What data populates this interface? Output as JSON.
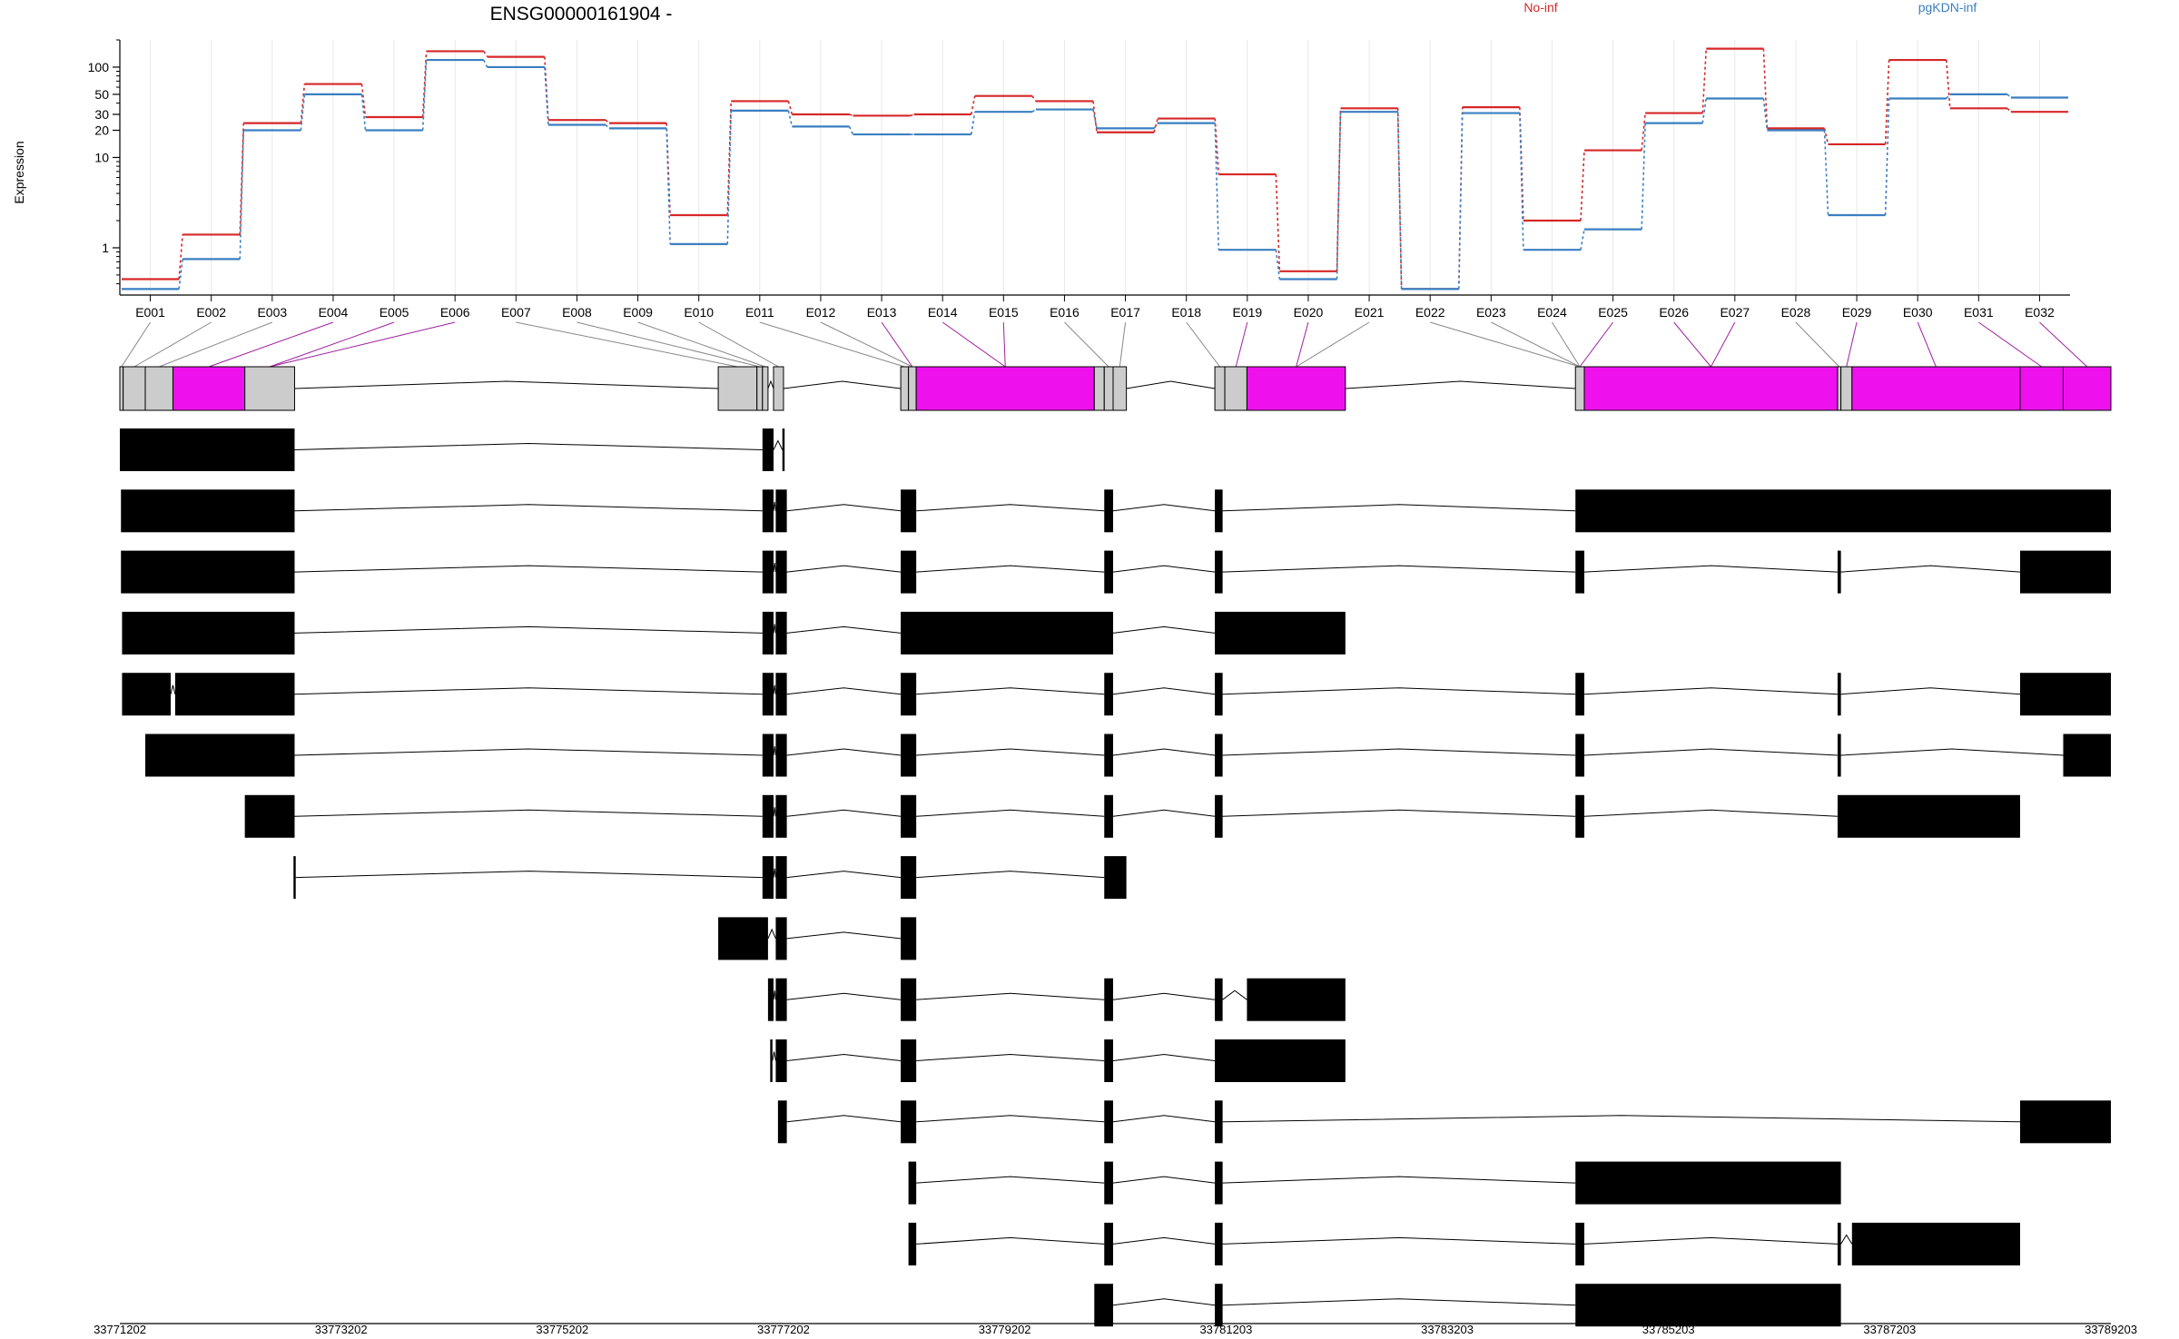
{
  "chart_data": {
    "type": "line",
    "title": "ENSG00000161904 -",
    "ylabel": "Expression",
    "yscale": "log",
    "ylim": [
      0.3,
      200
    ],
    "yticks": [
      1,
      10,
      20,
      30,
      50,
      100
    ],
    "colors": {
      "No-inf": "#d62728",
      "pgKDN-inf": "#3a7fc1",
      "exon_highlight": "#ee11ee",
      "exon_plain": "#cccccc",
      "transcript": "#000000"
    },
    "categories": [
      "E001",
      "E002",
      "E003",
      "E004",
      "E005",
      "E006",
      "E007",
      "E008",
      "E009",
      "E010",
      "E011",
      "E012",
      "E013",
      "E014",
      "E015",
      "E016",
      "E017",
      "E018",
      "E019",
      "E020",
      "E021",
      "E022",
      "E023",
      "E024",
      "E025",
      "E026",
      "E027",
      "E028",
      "E029",
      "E030",
      "E031",
      "E032"
    ],
    "series": [
      {
        "name": "No-inf",
        "values": [
          0.45,
          1.4,
          24,
          65,
          28,
          150,
          130,
          26,
          24,
          2.3,
          42,
          30,
          29,
          30,
          48,
          42,
          19,
          27,
          6.5,
          0.55,
          35,
          0.35,
          36,
          2.0,
          12,
          31,
          160,
          21,
          14,
          120,
          35,
          32
        ]
      },
      {
        "name": "pgKDN-inf",
        "values": [
          0.35,
          0.75,
          20,
          50,
          20,
          120,
          100,
          23,
          21,
          1.1,
          33,
          22,
          18,
          18,
          32,
          34,
          21,
          24,
          0.95,
          0.45,
          32,
          0.35,
          31,
          0.95,
          1.6,
          24,
          45,
          20,
          2.3,
          45,
          50,
          46
        ]
      }
    ],
    "genome_axis": {
      "ticks": [
        "33771202",
        "33773202",
        "33775202",
        "33777202",
        "33779202",
        "33781203",
        "33783203",
        "33785203",
        "33787203",
        "33789203"
      ],
      "range": [
        33771202,
        33789203
      ]
    },
    "gene_model": {
      "exons": [
        {
          "start": 33771202,
          "end": 33771232,
          "hl": false
        },
        {
          "start": 33771232,
          "end": 33771432,
          "hl": false
        },
        {
          "start": 33771432,
          "end": 33771682,
          "hl": false
        },
        {
          "start": 33771682,
          "end": 33772332,
          "hl": true
        },
        {
          "start": 33772332,
          "end": 33772782,
          "hl": false
        },
        {
          "start": 33776612,
          "end": 33776962,
          "hl": false
        },
        {
          "start": 33776962,
          "end": 33777012,
          "hl": false
        },
        {
          "start": 33777012,
          "end": 33777062,
          "hl": false
        },
        {
          "start": 33777112,
          "end": 33777202,
          "hl": false
        },
        {
          "start": 33778262,
          "end": 33778332,
          "hl": false
        },
        {
          "start": 33778332,
          "end": 33778402,
          "hl": false
        },
        {
          "start": 33778402,
          "end": 33780012,
          "hl": true
        },
        {
          "start": 33780012,
          "end": 33780102,
          "hl": false
        },
        {
          "start": 33780102,
          "end": 33780182,
          "hl": false
        },
        {
          "start": 33780182,
          "end": 33780302,
          "hl": false
        },
        {
          "start": 33781102,
          "end": 33781192,
          "hl": false
        },
        {
          "start": 33781192,
          "end": 33781392,
          "hl": false
        },
        {
          "start": 33781392,
          "end": 33782282,
          "hl": true
        },
        {
          "start": 33784362,
          "end": 33784442,
          "hl": false
        },
        {
          "start": 33784442,
          "end": 33786732,
          "hl": true
        },
        {
          "start": 33786732,
          "end": 33786762,
          "hl": false
        },
        {
          "start": 33786762,
          "end": 33786862,
          "hl": false
        },
        {
          "start": 33786862,
          "end": 33788382,
          "hl": true
        },
        {
          "start": 33788382,
          "end": 33788772,
          "hl": true
        },
        {
          "start": 33788772,
          "end": 33789203,
          "hl": true
        }
      ],
      "exon_label_links": [
        0,
        1,
        2,
        3,
        4,
        4,
        5,
        6,
        7,
        8,
        9,
        10,
        10,
        11,
        11,
        13,
        14,
        15,
        16,
        17,
        17,
        18,
        18,
        18,
        18,
        19,
        19,
        20,
        21,
        22,
        23,
        24
      ],
      "highlight_links": [
        3,
        4,
        5,
        12,
        13,
        14,
        18,
        19,
        24,
        25,
        26,
        28,
        29,
        30,
        31
      ]
    },
    "transcripts": [
      [
        [
          33771202,
          33772782
        ],
        [
          33777012,
          33777112
        ],
        [
          33777192,
          33777212
        ]
      ],
      [
        [
          33771212,
          33772782
        ],
        [
          33777012,
          33777112
        ],
        [
          33777132,
          33777232
        ],
        [
          33778262,
          33778402
        ],
        [
          33780102,
          33780182
        ],
        [
          33781102,
          33781172
        ],
        [
          33784362,
          33789203
        ]
      ],
      [
        [
          33771212,
          33772782
        ],
        [
          33777012,
          33777112
        ],
        [
          33777132,
          33777232
        ],
        [
          33778262,
          33778402
        ],
        [
          33780102,
          33780182
        ],
        [
          33781102,
          33781172
        ],
        [
          33784362,
          33784442
        ],
        [
          33786732,
          33786762
        ],
        [
          33788382,
          33789203
        ]
      ],
      [
        [
          33771222,
          33772782
        ],
        [
          33777012,
          33777112
        ],
        [
          33777132,
          33777232
        ],
        [
          33778262,
          33780182
        ],
        [
          33781102,
          33782282
        ]
      ],
      [
        [
          33771222,
          33771662
        ],
        [
          33771702,
          33772782
        ],
        [
          33777012,
          33777112
        ],
        [
          33777132,
          33777232
        ],
        [
          33778262,
          33778402
        ],
        [
          33780102,
          33780182
        ],
        [
          33781102,
          33781172
        ],
        [
          33784362,
          33784442
        ],
        [
          33786732,
          33786762
        ],
        [
          33788382,
          33789203
        ]
      ],
      [
        [
          33771432,
          33772782
        ],
        [
          33777012,
          33777112
        ],
        [
          33777132,
          33777232
        ],
        [
          33778262,
          33778402
        ],
        [
          33780102,
          33780182
        ],
        [
          33781102,
          33781172
        ],
        [
          33784362,
          33784442
        ],
        [
          33786732,
          33786762
        ],
        [
          33788772,
          33789203
        ]
      ],
      [
        [
          33772332,
          33772782
        ],
        [
          33777012,
          33777112
        ],
        [
          33777132,
          33777232
        ],
        [
          33778262,
          33778402
        ],
        [
          33780102,
          33780182
        ],
        [
          33781102,
          33781172
        ],
        [
          33784362,
          33784442
        ],
        [
          33786732,
          33788382
        ]
      ],
      [
        [
          33772772,
          33772792
        ],
        [
          33777012,
          33777112
        ],
        [
          33777132,
          33777232
        ],
        [
          33778262,
          33778402
        ],
        [
          33780102,
          33780302
        ]
      ],
      [
        [
          33776612,
          33777062
        ],
        [
          33777132,
          33777232
        ],
        [
          33778262,
          33778402
        ]
      ],
      [
        [
          33777062,
          33777112
        ],
        [
          33777132,
          33777232
        ],
        [
          33778262,
          33778402
        ],
        [
          33780102,
          33780182
        ],
        [
          33781102,
          33781172
        ],
        [
          33781392,
          33782282
        ]
      ],
      [
        [
          33777082,
          33777102
        ],
        [
          33777132,
          33777232
        ],
        [
          33778262,
          33778402
        ],
        [
          33780102,
          33780182
        ],
        [
          33781102,
          33782282
        ]
      ],
      [
        [
          33777152,
          33777232
        ],
        [
          33778262,
          33778402
        ],
        [
          33780102,
          33780182
        ],
        [
          33781102,
          33781172
        ],
        [
          33788382,
          33789203
        ]
      ],
      [
        [
          33778332,
          33778402
        ],
        [
          33780102,
          33780182
        ],
        [
          33781102,
          33781172
        ],
        [
          33784362,
          33786762
        ]
      ],
      [
        [
          33778332,
          33778402
        ],
        [
          33780102,
          33780182
        ],
        [
          33781102,
          33781172
        ],
        [
          33784362,
          33784442
        ],
        [
          33786732,
          33786762
        ],
        [
          33786862,
          33788382
        ]
      ],
      [
        [
          33780012,
          33780182
        ],
        [
          33781102,
          33781172
        ],
        [
          33784362,
          33786762
        ]
      ]
    ]
  }
}
